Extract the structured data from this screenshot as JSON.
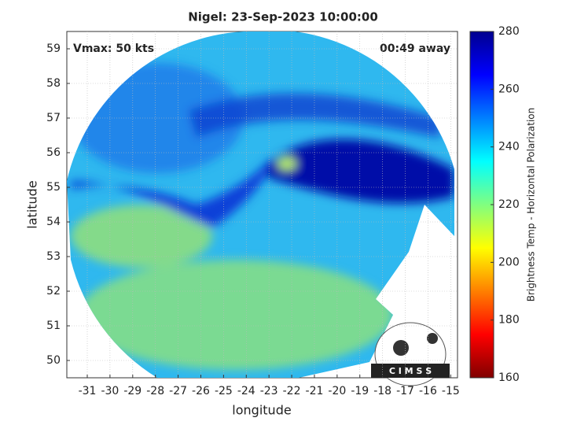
{
  "chart_data": {
    "type": "map",
    "title": "Nigel: 23-Sep-2023 10:00:00",
    "annotations": [
      "Vmax: 50 kts",
      "00:49 away"
    ],
    "xlabel": "longitude",
    "ylabel": "latitude",
    "xlim": [
      -31.9,
      -14.7
    ],
    "xticks": [
      -31,
      -30,
      -29,
      -28,
      -27,
      -26,
      -25,
      -24,
      -23,
      -22,
      -21,
      -20,
      -19,
      -18,
      -17,
      -16,
      -15
    ],
    "ylim": [
      49.5,
      59.5
    ],
    "yticks": [
      50,
      51,
      52,
      53,
      54,
      55,
      56,
      57,
      58,
      59
    ],
    "grid": true,
    "colorbar": {
      "label": "Brightness Temp - Horizontal Polarization",
      "lim": [
        160,
        280
      ],
      "ticks": [
        160,
        180,
        200,
        220,
        240,
        260,
        280
      ],
      "colormap": "jet-reversed"
    },
    "logo": "C I M S S"
  }
}
